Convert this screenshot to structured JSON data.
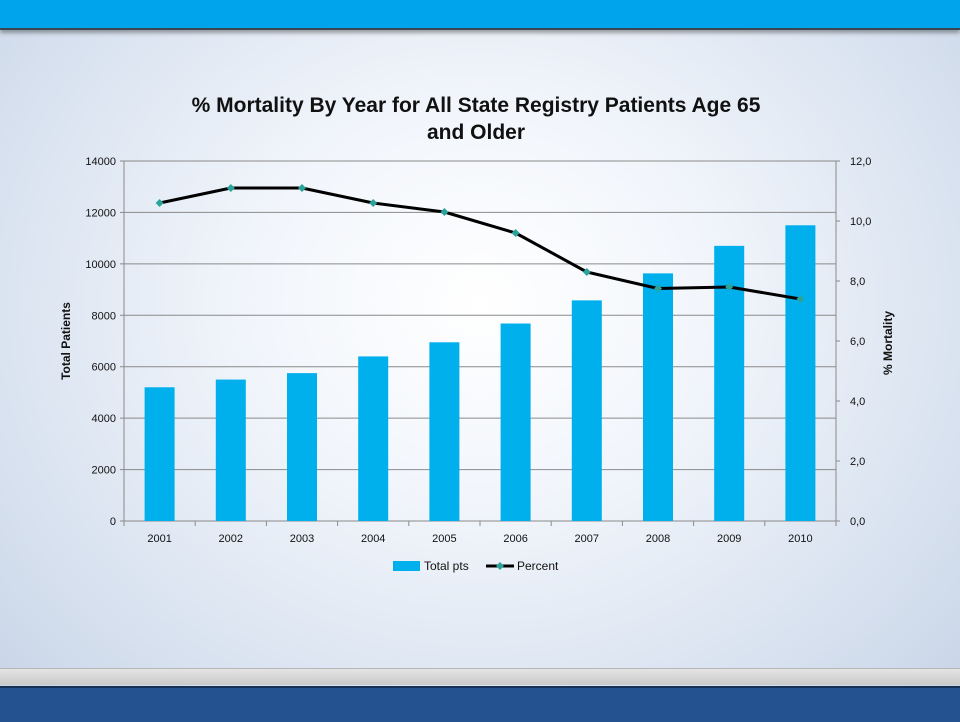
{
  "chart_data": {
    "type": "bar",
    "title": "% Mortality By Year for All State Registry Patients Age 65 and Older",
    "title_lines": [
      "% Mortality By Year for All State Registry Patients Age 65",
      "and Older"
    ],
    "categories": [
      "2001",
      "2002",
      "2003",
      "2004",
      "2005",
      "2006",
      "2007",
      "2008",
      "2009",
      "2010"
    ],
    "series": [
      {
        "name": "Total pts",
        "type": "bar",
        "axis": "left",
        "color": "#00b0ec",
        "values": [
          5200,
          5500,
          5750,
          6400,
          6950,
          7680,
          8580,
          9630,
          10700,
          11500
        ]
      },
      {
        "name": "Percent",
        "type": "line",
        "axis": "right",
        "color": "#000000",
        "marker_color": "#2aa39a",
        "values": [
          10.6,
          11.1,
          11.1,
          10.6,
          10.3,
          9.6,
          8.3,
          7.75,
          7.8,
          7.4
        ]
      }
    ],
    "ylabel": "Total Patients",
    "ylim": [
      0,
      14000
    ],
    "yticks": [
      "0",
      "2000",
      "4000",
      "6000",
      "8000",
      "10000",
      "12000",
      "14000"
    ],
    "y2label": "% Mortality",
    "y2lim": [
      0,
      12
    ],
    "y2ticks": [
      "0,0",
      "2,0",
      "4,0",
      "6,0",
      "8,0",
      "10,0",
      "12,0"
    ],
    "grid": true,
    "legend_position": "bottom"
  }
}
